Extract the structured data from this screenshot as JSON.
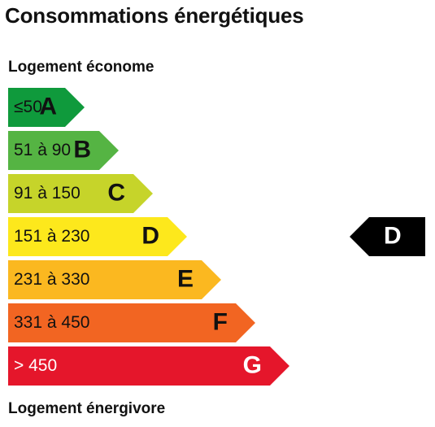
{
  "title": "Consommations énergétiques",
  "label_top": "Logement économe",
  "label_bottom": "Logement énergivore",
  "classes": [
    {
      "range": "≤50",
      "letter": "A",
      "color": "#0f9a3c",
      "text_color": "#111111"
    },
    {
      "range": "51 à 90",
      "letter": "B",
      "color": "#55b443",
      "text_color": "#111111"
    },
    {
      "range": "91 à 150",
      "letter": "C",
      "color": "#c6d42a",
      "text_color": "#111111"
    },
    {
      "range": "151 à 230",
      "letter": "D",
      "color": "#fde81c",
      "text_color": "#111111"
    },
    {
      "range": "231 à 330",
      "letter": "E",
      "color": "#fbb820",
      "text_color": "#111111"
    },
    {
      "range": "331 à 450",
      "letter": "F",
      "color": "#f26522",
      "text_color": "#111111"
    },
    {
      "range": "> 450",
      "letter": "G",
      "color": "#e5162b",
      "text_color": "#ffffff"
    }
  ],
  "current": {
    "letter": "D",
    "color": "#000000"
  }
}
